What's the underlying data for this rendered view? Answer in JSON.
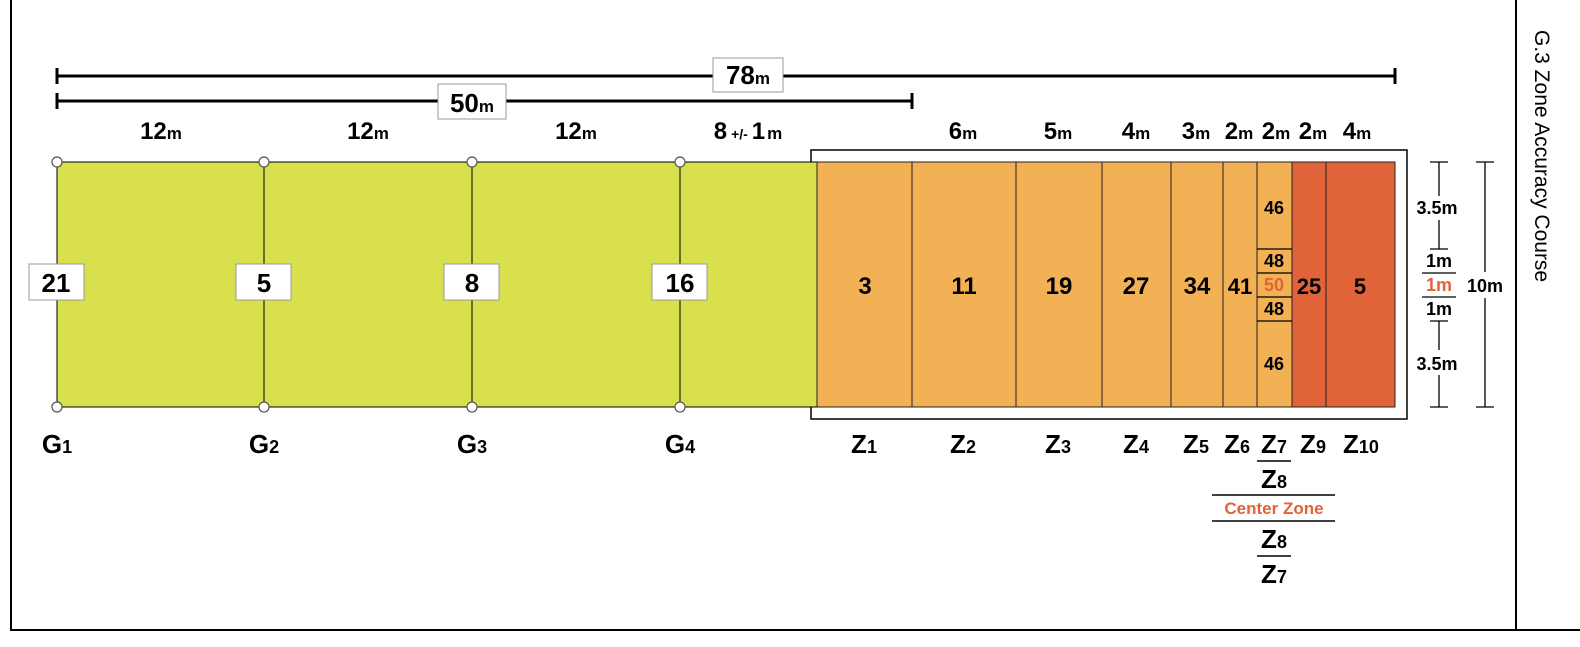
{
  "title": "G.3 Zone Accuracy Course",
  "dimensions": {
    "total": {
      "value": "78",
      "unit": "m"
    },
    "gates_span": {
      "value": "50",
      "unit": "m"
    },
    "gate_segments": [
      {
        "value": "12",
        "unit": "m"
      },
      {
        "value": "12",
        "unit": "m"
      },
      {
        "value": "12",
        "unit": "m"
      },
      {
        "value": "8",
        "tol": "+/-",
        "tol_value": "1",
        "unit": "m"
      }
    ],
    "zone_widths": [
      {
        "value": "6",
        "unit": "m"
      },
      {
        "value": "5",
        "unit": "m"
      },
      {
        "value": "4",
        "unit": "m"
      },
      {
        "value": "3",
        "unit": "m"
      },
      {
        "value": "2",
        "unit": "m"
      },
      {
        "value": "2",
        "unit": "m"
      },
      {
        "value": "2",
        "unit": "m"
      },
      {
        "value": "4",
        "unit": "m"
      }
    ]
  },
  "gates": [
    {
      "letter": "G",
      "number": "1",
      "score": "21"
    },
    {
      "letter": "G",
      "number": "2",
      "score": "5"
    },
    {
      "letter": "G",
      "number": "3",
      "score": "8"
    },
    {
      "letter": "G",
      "number": "4",
      "score": "16"
    }
  ],
  "zones": [
    {
      "letter": "Z",
      "number": "1",
      "score": "3",
      "color": "#f2b155"
    },
    {
      "letter": "Z",
      "number": "2",
      "score": "11",
      "color": "#f2b155"
    },
    {
      "letter": "Z",
      "number": "3",
      "score": "19",
      "color": "#f2b155"
    },
    {
      "letter": "Z",
      "number": "4",
      "score": "27",
      "color": "#f2b155"
    },
    {
      "letter": "Z",
      "number": "5",
      "score": "34",
      "color": "#f2b155"
    },
    {
      "letter": "Z",
      "number": "6",
      "score": "41",
      "color": "#f2b155"
    },
    {
      "letter": "Z",
      "number": "9",
      "score": "25",
      "color": "#e0633a"
    },
    {
      "letter": "Z",
      "number": "10",
      "score": "5",
      "color": "#e0633a"
    }
  ],
  "center_column": {
    "scores": [
      "46",
      "48",
      "50",
      "48",
      "46"
    ],
    "labels": [
      {
        "letter": "Z",
        "number": "7"
      },
      {
        "letter": "Z",
        "number": "8"
      },
      {
        "text": "Center Zone"
      },
      {
        "letter": "Z",
        "number": "8"
      },
      {
        "letter": "Z",
        "number": "7"
      }
    ]
  },
  "side_dimensions": [
    "3.5m",
    "1m",
    "1m",
    "1m",
    "3.5m"
  ],
  "width_total": "10m",
  "colors": {
    "gate_area": "#d9e04d",
    "zone_light": "#f2b155",
    "zone_dark": "#e0633a",
    "accent": "#e0633a"
  }
}
